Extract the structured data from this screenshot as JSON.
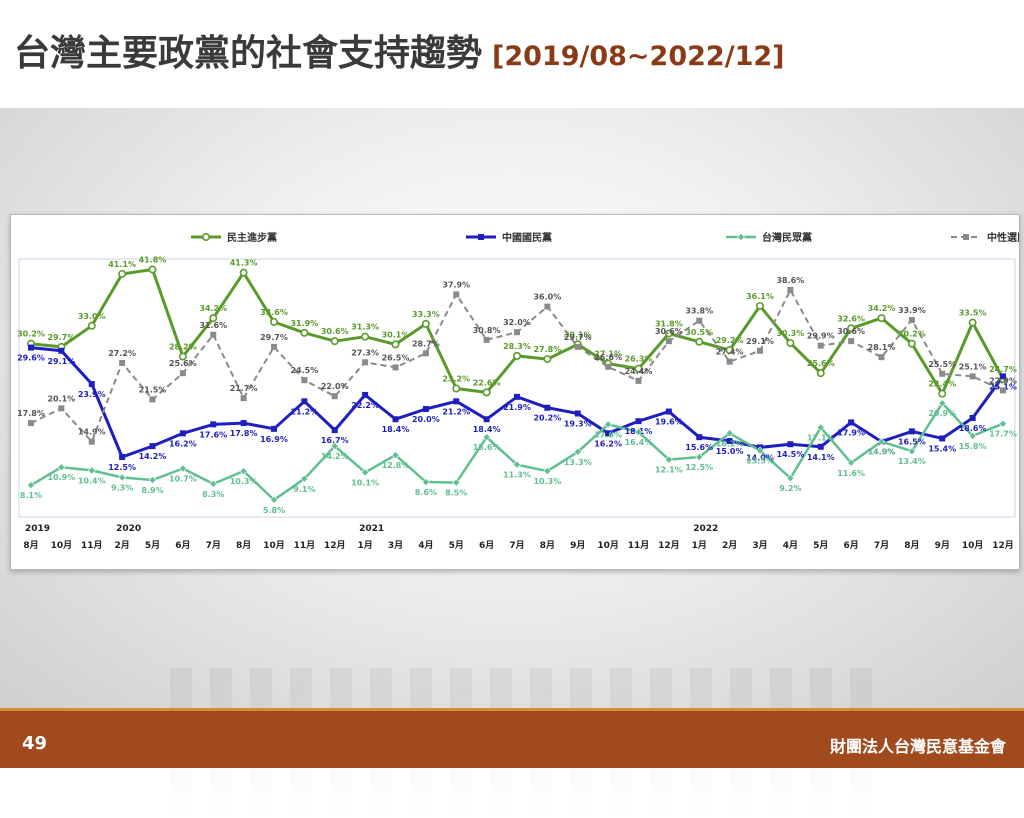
{
  "slide": {
    "title": "台灣主要政黨的社會支持趨勢",
    "date_range": "[2019/08~2022/12]",
    "page_number": "49",
    "organization": "財團法人台灣民意基金會"
  },
  "chart_data": {
    "type": "line",
    "title": "",
    "xlabel": "",
    "ylabel": "",
    "legend_position": "top",
    "grid": false,
    "x": [
      "8月",
      "10月",
      "11月",
      "2月",
      "5月",
      "6月",
      "7月",
      "8月",
      "10月",
      "11月",
      "12月",
      "1月",
      "3月",
      "4月",
      "5月",
      "6月",
      "7月",
      "8月",
      "9月",
      "10月",
      "11月",
      "12月",
      "1月",
      "2月",
      "3月",
      "4月",
      "5月",
      "6月",
      "7月",
      "8月",
      "9月",
      "10月",
      "12月"
    ],
    "year_labels": [
      {
        "label": "2019",
        "index": 0
      },
      {
        "label": "2020",
        "index": 3
      },
      {
        "label": "2021",
        "index": 11
      },
      {
        "label": "2022",
        "index": 22
      }
    ],
    "series": [
      {
        "name": "民主進步黨",
        "color": "#5a9a2a",
        "dash": "",
        "marker": "circle",
        "width": 3,
        "values": [
          30.2,
          29.7,
          33.0,
          41.1,
          41.8,
          28.2,
          34.2,
          41.3,
          33.6,
          31.9,
          30.6,
          31.3,
          30.1,
          33.3,
          23.2,
          22.6,
          28.3,
          27.8,
          30.1,
          27.1,
          26.3,
          31.8,
          30.5,
          29.2,
          36.1,
          30.3,
          25.6,
          32.6,
          34.2,
          30.2,
          22.4,
          33.5,
          24.7
        ]
      },
      {
        "name": "中國國民黨",
        "color": "#1f1fbf",
        "dash": "",
        "marker": "square",
        "width": 3,
        "values": [
          29.6,
          29.1,
          23.9,
          12.5,
          14.2,
          16.2,
          17.6,
          17.8,
          16.9,
          21.2,
          16.7,
          22.2,
          18.4,
          20.0,
          21.2,
          18.4,
          21.9,
          20.2,
          19.3,
          16.2,
          18.1,
          19.6,
          15.6,
          15.0,
          14.0,
          14.5,
          14.1,
          17.9,
          14.9,
          16.5,
          15.4,
          18.6,
          25.1
        ]
      },
      {
        "name": "台灣民眾黨",
        "color": "#5fbf8f",
        "dash": "",
        "marker": "diamond",
        "width": 2.5,
        "values": [
          8.1,
          10.9,
          10.4,
          9.3,
          8.9,
          10.7,
          8.3,
          10.3,
          5.8,
          9.1,
          14.2,
          10.1,
          12.8,
          8.6,
          8.5,
          15.6,
          11.3,
          10.3,
          13.3,
          17.6,
          16.4,
          12.1,
          12.5,
          16.2,
          13.5,
          9.2,
          17.1,
          11.6,
          14.9,
          13.4,
          20.9,
          15.8,
          17.7
        ]
      },
      {
        "name": "中性選民",
        "color": "#8a8a8a",
        "dash": "6,4",
        "marker": "square",
        "width": 2,
        "values": [
          17.8,
          20.1,
          14.9,
          27.2,
          21.5,
          25.6,
          31.6,
          21.7,
          29.7,
          24.5,
          22.0,
          27.3,
          26.5,
          28.7,
          37.9,
          30.8,
          32.0,
          36.0,
          29.7,
          26.6,
          24.4,
          30.6,
          33.8,
          27.4,
          29.1,
          38.6,
          29.9,
          30.6,
          28.1,
          33.9,
          25.5,
          25.1,
          22.9
        ]
      }
    ],
    "ylim": [
      0,
      45
    ]
  }
}
